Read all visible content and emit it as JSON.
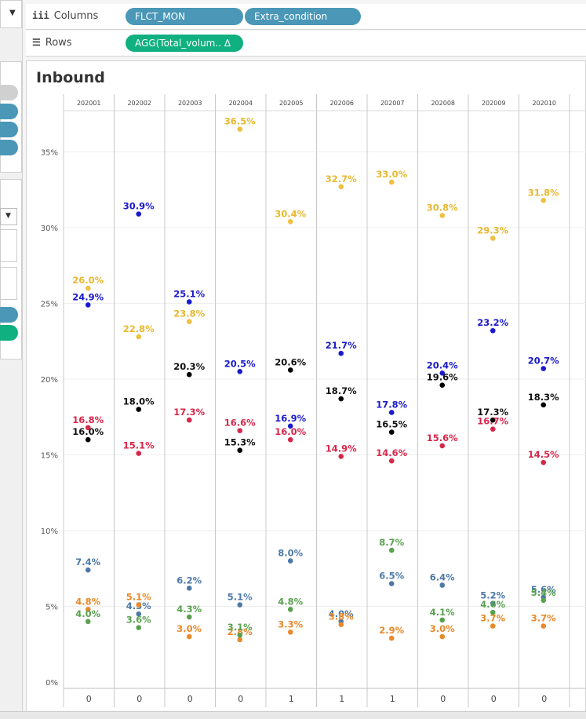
{
  "shelves": {
    "columns": {
      "icon": "iii",
      "label": "Columns",
      "pills": [
        "FLCT_MON",
        "Extra_condition"
      ]
    },
    "rows": {
      "icon": "☰",
      "label": "Rows",
      "pills": [
        "AGG(Total_volum..  Δ"
      ]
    }
  },
  "view_title": "Inbound",
  "colors": {
    "pill_blue": "#4a97b7",
    "pill_green": "#10b080"
  },
  "chart_data": {
    "type": "scatter",
    "title": "Inbound",
    "columns": [
      "202001",
      "202002",
      "202003",
      "202004",
      "202005",
      "202006",
      "202007",
      "202008",
      "202009",
      "202010"
    ],
    "extra_condition": [
      0,
      0,
      0,
      0,
      1,
      1,
      1,
      0,
      0,
      0
    ],
    "y_ticks": [
      "0%",
      "5%",
      "10%",
      "15%",
      "20%",
      "25%",
      "30%",
      "35%"
    ],
    "ylim": [
      0,
      37.5
    ],
    "series": [
      {
        "color": "#f0c040",
        "label_color": "#e8b830",
        "values": [
          26.0,
          22.8,
          23.8,
          36.5,
          30.4,
          32.7,
          33.0,
          30.8,
          29.3,
          31.8
        ]
      },
      {
        "color": "#1a1acc",
        "label_color": "#1a1acc",
        "values": [
          24.9,
          30.9,
          25.1,
          20.5,
          16.9,
          21.7,
          17.8,
          20.4,
          23.2,
          20.7
        ]
      },
      {
        "color": "#000000",
        "label_color": "#111111",
        "values": [
          16.0,
          18.0,
          20.3,
          15.3,
          20.6,
          18.7,
          16.5,
          19.6,
          17.3,
          18.3
        ]
      },
      {
        "color": "#d8264a",
        "label_color": "#d8264a",
        "values": [
          16.8,
          15.1,
          17.3,
          16.6,
          16.0,
          14.9,
          14.6,
          15.6,
          16.7,
          14.5
        ]
      },
      {
        "color": "#4e79a7",
        "label_color": "#4e79a7",
        "values": [
          7.4,
          4.5,
          6.2,
          5.1,
          8.0,
          4.0,
          6.5,
          6.4,
          5.2,
          5.6
        ]
      },
      {
        "color": "#e8892a",
        "label_color": "#e8892a",
        "values": [
          4.8,
          5.1,
          3.0,
          2.8,
          3.3,
          3.8,
          2.9,
          3.0,
          3.7,
          3.7
        ]
      },
      {
        "color": "#59a14f",
        "label_color": "#59a14f",
        "values": [
          4.0,
          3.6,
          4.3,
          3.1,
          4.8,
          null,
          8.7,
          4.1,
          4.6,
          5.4
        ]
      }
    ]
  }
}
